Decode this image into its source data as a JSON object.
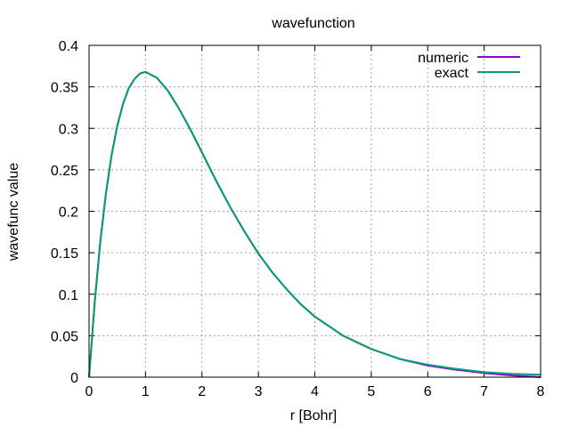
{
  "chart_data": {
    "type": "line",
    "title": "wavefunction",
    "xlabel": "r [Bohr]",
    "ylabel": "wavefunc value",
    "xlim": [
      0,
      8
    ],
    "ylim": [
      0,
      0.4
    ],
    "xticks": [
      0,
      1,
      2,
      3,
      4,
      5,
      6,
      7,
      8
    ],
    "yticks": [
      0,
      0.05,
      0.1,
      0.15,
      0.2,
      0.25,
      0.3,
      0.35,
      0.4
    ],
    "xtick_labels": [
      "0",
      "1",
      "2",
      "3",
      "4",
      "5",
      "6",
      "7",
      "8"
    ],
    "ytick_labels": [
      "0",
      "0.05",
      "0.1",
      "0.15",
      "0.2",
      "0.25",
      "0.3",
      "0.35",
      "0.4"
    ],
    "grid": true,
    "legend_position": "top-right",
    "series": [
      {
        "name": "numeric",
        "color": "#9400d3",
        "x": [
          0,
          0.1,
          0.2,
          0.3,
          0.4,
          0.5,
          0.6,
          0.7,
          0.8,
          0.9,
          1.0,
          1.2,
          1.4,
          1.6,
          1.8,
          2.0,
          2.25,
          2.5,
          2.75,
          3.0,
          3.25,
          3.5,
          3.75,
          4.0,
          4.5,
          5.0,
          5.5,
          6.0,
          6.5,
          7.0,
          7.5,
          8.0
        ],
        "y": [
          0,
          0.09,
          0.164,
          0.222,
          0.268,
          0.303,
          0.329,
          0.348,
          0.359,
          0.366,
          0.368,
          0.361,
          0.345,
          0.323,
          0.298,
          0.271,
          0.237,
          0.205,
          0.176,
          0.149,
          0.126,
          0.106,
          0.088,
          0.073,
          0.05,
          0.034,
          0.022,
          0.014,
          0.009,
          0.005,
          0.002,
          0.0
        ]
      },
      {
        "name": "exact",
        "color": "#009e73",
        "x": [
          0,
          0.1,
          0.2,
          0.3,
          0.4,
          0.5,
          0.6,
          0.7,
          0.8,
          0.9,
          1.0,
          1.2,
          1.4,
          1.6,
          1.8,
          2.0,
          2.25,
          2.5,
          2.75,
          3.0,
          3.25,
          3.5,
          3.75,
          4.0,
          4.5,
          5.0,
          5.5,
          6.0,
          6.5,
          7.0,
          7.5,
          8.0
        ],
        "y": [
          0,
          0.09,
          0.164,
          0.222,
          0.268,
          0.303,
          0.329,
          0.348,
          0.359,
          0.366,
          0.368,
          0.361,
          0.345,
          0.323,
          0.298,
          0.271,
          0.237,
          0.205,
          0.176,
          0.149,
          0.126,
          0.106,
          0.088,
          0.073,
          0.05,
          0.034,
          0.022,
          0.015,
          0.01,
          0.006,
          0.004,
          0.003
        ]
      }
    ]
  }
}
